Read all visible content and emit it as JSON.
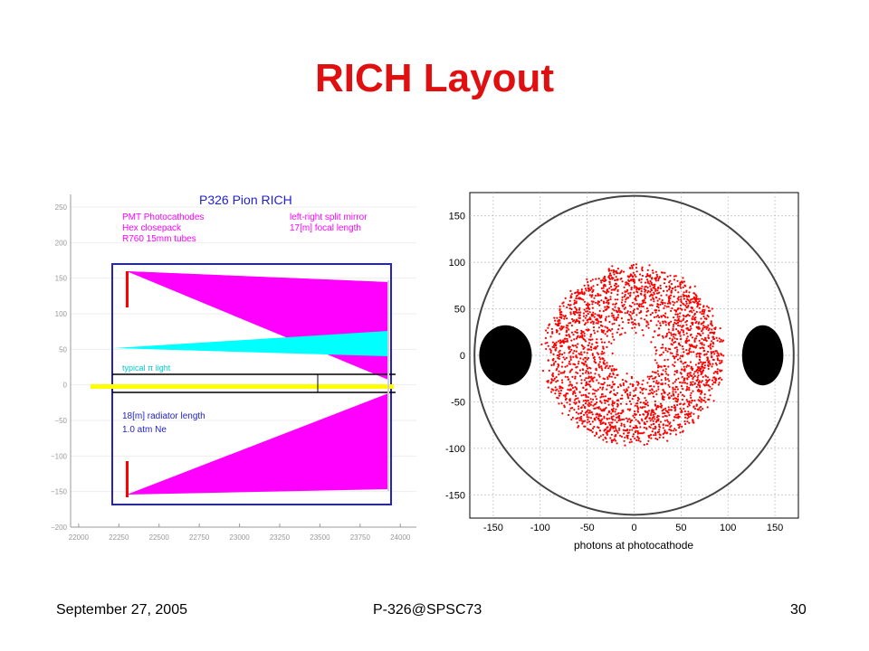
{
  "slide": {
    "title": "RICH Layout",
    "footer": {
      "date": "September 27, 2005",
      "center": "P-326@SPSC73",
      "page": "30"
    }
  },
  "chart_data": [
    {
      "type": "diagram",
      "title": "P326 Pion RICH",
      "annotations": [
        "PMT Photocathodes",
        "Hex closepack",
        "R760 15mm tubes",
        "left-right split mirror",
        "17[m] focal length",
        "typical π light",
        "18[m] radiator length",
        "1.0 atm Ne"
      ],
      "x_ticks": [
        "22000",
        "22250",
        "22500",
        "22750",
        "23000",
        "23250",
        "23500",
        "23750",
        "24000"
      ],
      "y_ticks": [
        "250",
        "200",
        "150",
        "100",
        "50",
        "0",
        "−50",
        "−100",
        "−150",
        "−200"
      ],
      "xlim": [
        21950,
        24100
      ],
      "ylim": [
        -200,
        250
      ],
      "colors": {
        "cone": "#ff00ff",
        "pion_light": "#00ffff",
        "beam": "#ffff00",
        "frame": "#2222cc",
        "photocathode": "#ff0000"
      }
    },
    {
      "type": "scatter",
      "xlabel": "photons at photocathode",
      "x_ticks": [
        "-150",
        "-100",
        "-50",
        "0",
        "50",
        "100",
        "150"
      ],
      "y_ticks": [
        "150",
        "100",
        "50",
        "0",
        "-50",
        "-100",
        "-150"
      ],
      "xlim": [
        -175,
        175
      ],
      "ylim": [
        -175,
        175
      ],
      "grid": true,
      "series": [
        {
          "color": "#ff0000",
          "shape": "annulus",
          "center": [
            0,
            0
          ],
          "inner_radius": 20,
          "outer_radius": 100
        },
        {
          "color": "#000000",
          "shape": "blob",
          "center": [
            -137,
            0
          ],
          "rx": 28,
          "ry": 32
        },
        {
          "color": "#000000",
          "shape": "blob",
          "center": [
            137,
            0
          ],
          "rx": 22,
          "ry": 32
        }
      ],
      "boundary_circle_radius": 170
    }
  ]
}
